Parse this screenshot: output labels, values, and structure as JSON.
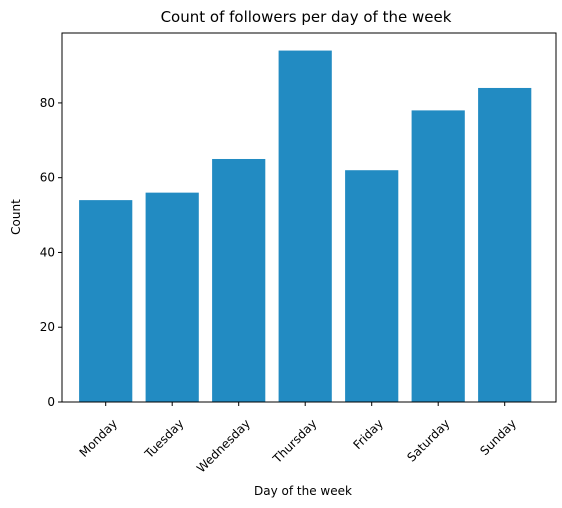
{
  "chart_data": {
    "type": "bar",
    "title": "Count of followers per day of the week",
    "xlabel": "Day of the week",
    "ylabel": "Count",
    "categories": [
      "Monday",
      "Tuesday",
      "Wednesday",
      "Thursday",
      "Friday",
      "Saturday",
      "Sunday"
    ],
    "values": [
      54,
      56,
      65,
      94,
      62,
      78,
      84
    ],
    "ylim": [
      0,
      98.7
    ],
    "yticks": [
      0,
      20,
      40,
      60,
      80
    ],
    "bar_color": "#228bc2",
    "grid": false,
    "xtick_rotation": 45
  }
}
